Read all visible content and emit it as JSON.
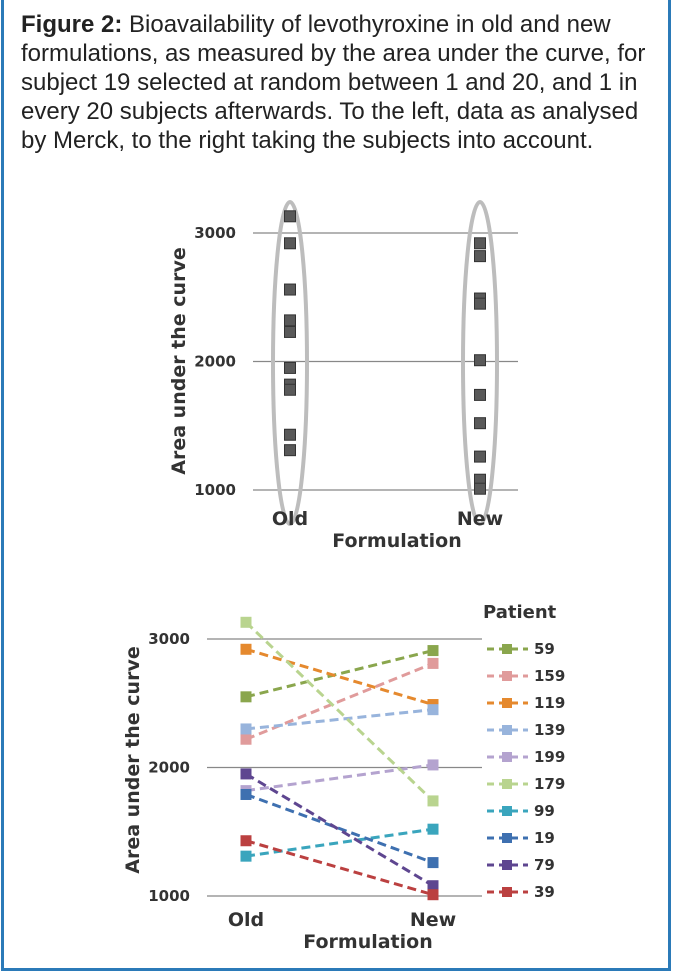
{
  "caption": {
    "label": "Figure 2:",
    "text": " Bioavailability of levothyroxine in old and new formulations, as measured by the area under the curve, for subject 19 selected at random between 1 and 20, and 1 in every 20 subjects afterwards. To the left, data as analysed by Merck, to the right taking the subjects into account."
  },
  "colors": {
    "frame": "#2b7ab8",
    "grid": "#888888",
    "marker": "#595959",
    "ellipse": "#bdbdbd"
  },
  "chart_data": [
    {
      "type": "scatter",
      "title": "",
      "xlabel": "Formulation",
      "ylabel": "Area under the curve",
      "categories": [
        "Old",
        "New"
      ],
      "ylim": [
        1000,
        3000
      ],
      "yticks": [
        "1000",
        "2000",
        "3000"
      ],
      "grid": true,
      "series": [
        {
          "category": "Old",
          "values": [
            3130,
            2920,
            2560,
            2320,
            2230,
            1950,
            1820,
            1780,
            1430,
            1310
          ]
        },
        {
          "category": "New",
          "values": [
            2920,
            2820,
            2490,
            2450,
            2010,
            1740,
            1520,
            1260,
            1080,
            1010
          ]
        }
      ],
      "annotations": "ellipse around each category's points"
    },
    {
      "type": "line",
      "title": "",
      "xlabel": "Formulation",
      "ylabel": "Area under the curve",
      "categories": [
        "Old",
        "New"
      ],
      "ylim": [
        1000,
        3000
      ],
      "yticks": [
        "1000",
        "2000",
        "3000"
      ],
      "grid": true,
      "legend_title": "Patient",
      "legend_position": "right",
      "series": [
        {
          "name": "59",
          "color": "#8aa64d",
          "values": [
            2550,
            2910
          ]
        },
        {
          "name": "159",
          "color": "#e09b9b",
          "values": [
            2220,
            2810
          ]
        },
        {
          "name": "119",
          "color": "#e5892e",
          "values": [
            2920,
            2490
          ]
        },
        {
          "name": "139",
          "color": "#98b4dc",
          "values": [
            2300,
            2450
          ]
        },
        {
          "name": "199",
          "color": "#b4a3cf",
          "values": [
            1820,
            2020
          ]
        },
        {
          "name": "179",
          "color": "#b9d48f",
          "values": [
            3130,
            1740
          ]
        },
        {
          "name": "99",
          "color": "#3aa5bd",
          "values": [
            1310,
            1520
          ]
        },
        {
          "name": "19",
          "color": "#3e70b0",
          "values": [
            1790,
            1260
          ]
        },
        {
          "name": "79",
          "color": "#5e4690",
          "values": [
            1950,
            1080
          ]
        },
        {
          "name": "39",
          "color": "#bb4040",
          "values": [
            1430,
            1010
          ]
        }
      ]
    }
  ]
}
